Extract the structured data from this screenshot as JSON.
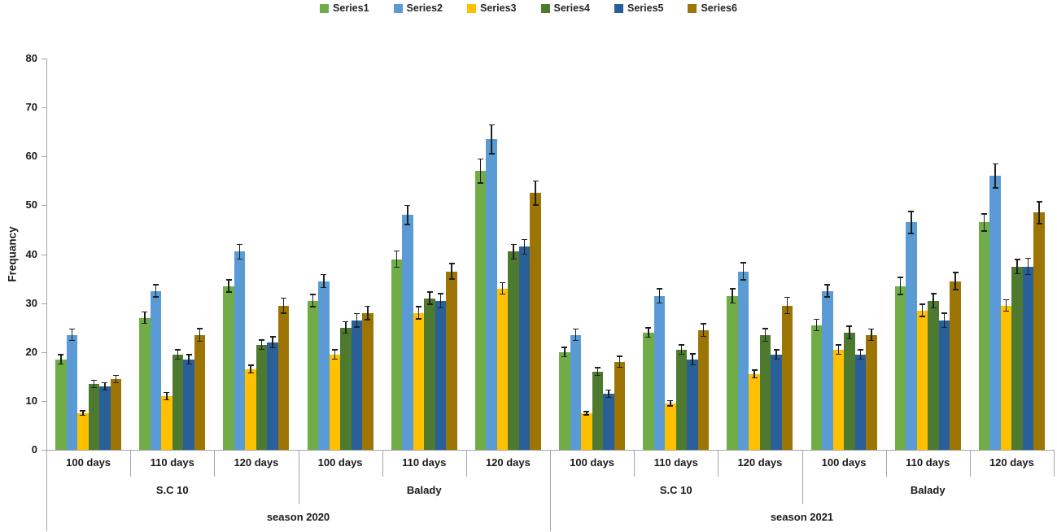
{
  "chart_data": {
    "type": "bar",
    "title": "",
    "ylabel": "Frequancy",
    "ylim": [
      0,
      80
    ],
    "yticks": [
      0,
      10,
      20,
      30,
      40,
      50,
      60,
      70,
      80
    ],
    "grid": false,
    "legend_position": "top",
    "axis_color": "#a6a6a6",
    "error_bar_color": "#1f1f1f",
    "x_hierarchy": {
      "seasons": [
        {
          "label": "season 2020",
          "cultivars": [
            {
              "label": "S.C 10",
              "days": [
                "100 days",
                "110 days",
                "120 days"
              ]
            },
            {
              "label": "Balady",
              "days": [
                "100 days",
                "110 days",
                "120 days"
              ]
            }
          ]
        },
        {
          "label": "season 2021",
          "cultivars": [
            {
              "label": "S.C 10",
              "days": [
                "100 days",
                "110 days",
                "120 days"
              ]
            },
            {
              "label": "Balady",
              "days": [
                "100 days",
                "110 days",
                "120 days"
              ]
            }
          ]
        }
      ]
    },
    "categories": [
      "2020 S.C 10 100 days",
      "2020 S.C 10 110 days",
      "2020 S.C 10 120 days",
      "2020 Balady 100 days",
      "2020 Balady 110 days",
      "2020 Balady 120 days",
      "2021 S.C 10 100 days",
      "2021 S.C 10 110 days",
      "2021 S.C 10 120 days",
      "2021 Balady 100 days",
      "2021 Balady 110 days",
      "2021 Balady 120 days"
    ],
    "series": [
      {
        "name": "Series1",
        "color": "#70AD47",
        "values": [
          18.5,
          27,
          33.5,
          30.5,
          39,
          57,
          20,
          24,
          31.5,
          25.5,
          33.5,
          46.5
        ],
        "errors": [
          1,
          1.2,
          1.3,
          1.3,
          1.7,
          2.5,
          1,
          1,
          1.5,
          1.2,
          1.8,
          1.8
        ]
      },
      {
        "name": "Series2",
        "color": "#5B9BD5",
        "values": [
          23.5,
          32.5,
          40.5,
          34.5,
          48,
          63.5,
          23.5,
          31.5,
          36.5,
          32.5,
          46.5,
          56
        ],
        "errors": [
          1.2,
          1.3,
          1.5,
          1.4,
          2,
          3,
          1.2,
          1.5,
          1.8,
          1.3,
          2.3,
          2.5
        ]
      },
      {
        "name": "Series3",
        "color": "#FFC000",
        "values": [
          7.5,
          11,
          16.5,
          19.5,
          28,
          33,
          7.5,
          9.5,
          15.5,
          20.5,
          28.5,
          29.5
        ],
        "errors": [
          0.5,
          0.8,
          0.8,
          1,
          1.3,
          1.2,
          0.4,
          0.6,
          0.8,
          1,
          1.3,
          1.2
        ]
      },
      {
        "name": "Series4",
        "color": "#4E7A30",
        "values": [
          13.5,
          19.5,
          21.5,
          25,
          31,
          40.5,
          16,
          20.5,
          23.5,
          24,
          30.5,
          37.5
        ],
        "errors": [
          0.8,
          1,
          1,
          1.2,
          1.3,
          1.5,
          0.8,
          1,
          1.3,
          1.3,
          1.5,
          1.5
        ]
      },
      {
        "name": "Series5",
        "color": "#2A6099",
        "values": [
          13,
          18.5,
          22,
          26.5,
          30.5,
          41.5,
          11.5,
          18.5,
          19.5,
          19.5,
          26.5,
          37.5
        ],
        "errors": [
          0.8,
          1,
          1.2,
          1.4,
          1.5,
          1.5,
          0.8,
          1.2,
          1,
          1,
          1.5,
          1.7
        ]
      },
      {
        "name": "Series6",
        "color": "#9C7504",
        "values": [
          14.5,
          23.5,
          29.5,
          28,
          36.5,
          52.5,
          18,
          24.5,
          29.5,
          23.5,
          34.5,
          48.5
        ],
        "errors": [
          0.8,
          1.3,
          1.6,
          1.4,
          1.6,
          2.5,
          1.2,
          1.3,
          1.7,
          1.2,
          1.8,
          2.3
        ]
      }
    ]
  }
}
